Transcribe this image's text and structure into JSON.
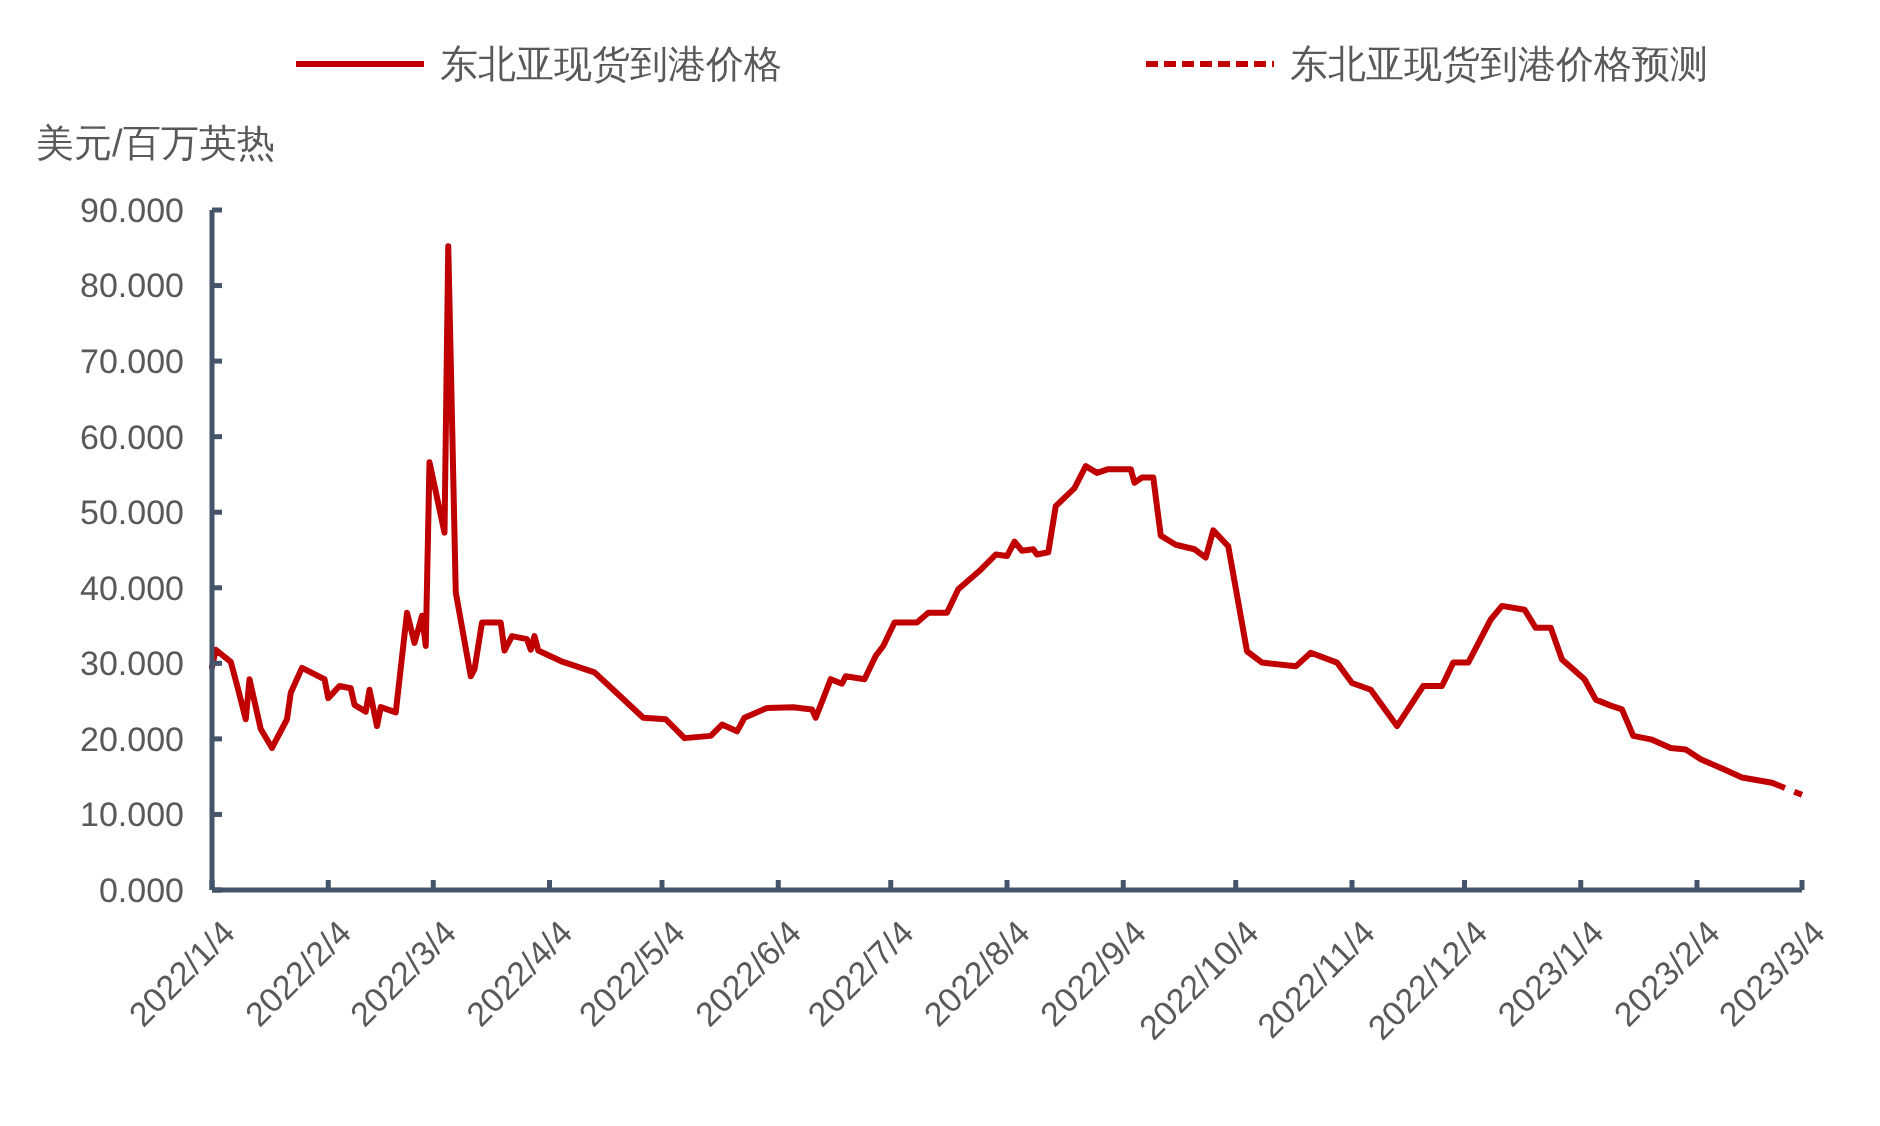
{
  "chart_data": {
    "type": "line",
    "ylabel": "美元/百万英热",
    "legend": "top",
    "grid": false,
    "marker": "none",
    "xlim": [
      "2022-01-04",
      "2023-03-04"
    ],
    "xticks": [
      {
        "value": "2022-01-04",
        "label": "2022/1/4"
      },
      {
        "value": "2022-02-04",
        "label": "2022/2/4"
      },
      {
        "value": "2022-03-04",
        "label": "2022/3/4"
      },
      {
        "value": "2022-04-04",
        "label": "2022/4/4"
      },
      {
        "value": "2022-05-04",
        "label": "2022/5/4"
      },
      {
        "value": "2022-06-04",
        "label": "2022/6/4"
      },
      {
        "value": "2022-07-04",
        "label": "2022/7/4"
      },
      {
        "value": "2022-08-04",
        "label": "2022/8/4"
      },
      {
        "value": "2022-09-04",
        "label": "2022/9/4"
      },
      {
        "value": "2022-10-04",
        "label": "2022/10/4"
      },
      {
        "value": "2022-11-04",
        "label": "2022/11/4"
      },
      {
        "value": "2022-12-04",
        "label": "2022/12/4"
      },
      {
        "value": "2023-01-04",
        "label": "2023/1/4"
      },
      {
        "value": "2023-02-04",
        "label": "2023/2/4"
      },
      {
        "value": "2023-03-04",
        "label": "2023/3/4"
      }
    ],
    "ylim": [
      0,
      90
    ],
    "yticks": [
      {
        "value": 0,
        "label": "0.000"
      },
      {
        "value": 10,
        "label": "10.000"
      },
      {
        "value": 20,
        "label": "20.000"
      },
      {
        "value": 30,
        "label": "30.000"
      },
      {
        "value": 40,
        "label": "40.000"
      },
      {
        "value": 50,
        "label": "50.000"
      },
      {
        "value": 60,
        "label": "60.000"
      },
      {
        "value": 70,
        "label": "70.000"
      },
      {
        "value": 80,
        "label": "80.000"
      },
      {
        "value": 90,
        "label": "90.000"
      }
    ],
    "series": [
      {
        "name": "东北亚现货到港价格",
        "color": "#c00000",
        "line_style": "solid",
        "x": [
          "2022-01-04",
          "2022-01-05",
          "2022-01-09",
          "2022-01-11",
          "2022-01-13",
          "2022-01-14",
          "2022-01-17",
          "2022-01-20",
          "2022-01-24",
          "2022-01-25",
          "2022-01-28",
          "2022-02-03",
          "2022-02-04",
          "2022-02-07",
          "2022-02-10",
          "2022-02-11",
          "2022-02-14",
          "2022-02-15",
          "2022-02-17",
          "2022-02-18",
          "2022-02-22",
          "2022-02-25",
          "2022-02-27",
          "2022-03-01",
          "2022-03-02",
          "2022-03-03",
          "2022-03-07",
          "2022-03-08",
          "2022-03-10",
          "2022-03-14",
          "2022-03-15",
          "2022-03-17",
          "2022-03-22",
          "2022-03-23",
          "2022-03-25",
          "2022-03-29",
          "2022-03-30",
          "2022-03-31",
          "2022-04-01",
          "2022-04-07",
          "2022-04-16",
          "2022-04-21",
          "2022-04-29",
          "2022-05-05",
          "2022-05-10",
          "2022-05-17",
          "2022-05-20",
          "2022-05-24",
          "2022-05-26",
          "2022-06-01",
          "2022-06-08",
          "2022-06-13",
          "2022-06-14",
          "2022-06-18",
          "2022-06-21",
          "2022-06-22",
          "2022-06-27",
          "2022-06-30",
          "2022-07-02",
          "2022-07-05",
          "2022-07-11",
          "2022-07-14",
          "2022-07-19",
          "2022-07-22",
          "2022-07-28",
          "2022-08-01",
          "2022-08-04",
          "2022-08-06",
          "2022-08-08",
          "2022-08-11",
          "2022-08-12",
          "2022-08-15",
          "2022-08-17",
          "2022-08-22",
          "2022-08-25",
          "2022-08-28",
          "2022-08-31",
          "2022-09-06",
          "2022-09-07",
          "2022-09-09",
          "2022-09-12",
          "2022-09-14",
          "2022-09-18",
          "2022-09-23",
          "2022-09-26",
          "2022-09-28",
          "2022-10-02",
          "2022-10-07",
          "2022-10-11",
          "2022-10-20",
          "2022-10-24",
          "2022-10-31",
          "2022-11-04",
          "2022-11-09",
          "2022-11-16",
          "2022-11-23",
          "2022-11-28",
          "2022-12-01",
          "2022-12-05",
          "2022-12-11",
          "2022-12-14",
          "2022-12-20",
          "2022-12-23",
          "2022-12-27",
          "2022-12-30",
          "2023-01-05",
          "2023-01-08",
          "2023-01-12",
          "2023-01-15",
          "2023-01-18",
          "2023-01-23",
          "2023-01-28",
          "2023-02-01",
          "2023-02-05",
          "2023-02-11",
          "2023-02-16",
          "2023-02-24"
        ],
        "values": [
          29.5,
          31.8,
          30.2,
          26.5,
          22.6,
          27.9,
          21.3,
          18.8,
          22.6,
          26.1,
          29.4,
          27.9,
          25.4,
          27.0,
          26.7,
          24.5,
          23.6,
          26.5,
          21.7,
          24.2,
          23.5,
          36.7,
          32.7,
          36.3,
          32.3,
          56.6,
          47.3,
          85.2,
          39.4,
          28.3,
          29.2,
          35.4,
          35.4,
          31.7,
          33.6,
          33.2,
          31.8,
          33.6,
          31.7,
          30.3,
          28.8,
          26.5,
          22.8,
          22.6,
          20.1,
          20.4,
          21.9,
          21.0,
          22.8,
          24.1,
          24.2,
          23.9,
          22.8,
          27.9,
          27.3,
          28.3,
          27.9,
          31.0,
          32.3,
          35.4,
          35.4,
          36.7,
          36.7,
          39.8,
          42.4,
          44.4,
          44.2,
          46.1,
          44.9,
          45.1,
          44.4,
          44.7,
          50.8,
          53.2,
          56.1,
          55.2,
          55.7,
          55.7,
          53.9,
          54.6,
          54.6,
          46.9,
          45.7,
          45.1,
          44.0,
          47.6,
          45.5,
          31.6,
          30.1,
          29.6,
          31.4,
          30.1,
          27.4,
          26.5,
          21.7,
          27.0,
          27.0,
          30.1,
          30.1,
          35.8,
          37.6,
          37.1,
          34.7,
          34.7,
          30.5,
          27.9,
          25.2,
          24.4,
          23.9,
          20.4,
          19.9,
          18.8,
          18.6,
          17.3,
          16.0,
          14.9,
          14.2
        ]
      },
      {
        "name": "东北亚现货到港价格预测",
        "color": "#c00000",
        "line_style": "dashed",
        "x": [
          "2023-02-24",
          "2023-02-28",
          "2023-03-04"
        ],
        "values": [
          14.2,
          13.4,
          12.6
        ]
      }
    ]
  }
}
